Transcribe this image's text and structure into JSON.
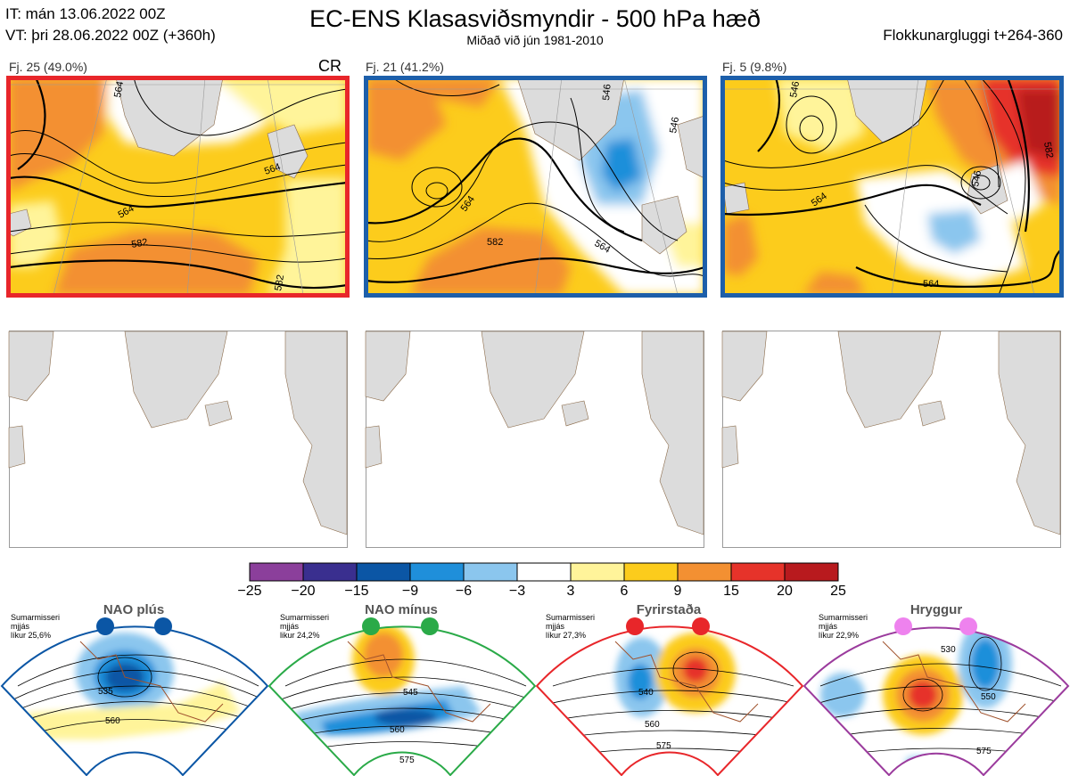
{
  "header": {
    "it_line": "IT: mán 13.06.2022 00Z",
    "vt_line": "VT: þri 28.06.2022 00Z  (+360h)",
    "title": "EC-ENS Klasasviðsmyndir - 500 hPa hæð",
    "subtitle": "Miðað við jún 1981-2010",
    "window": "Flokkunargluggi t+264-360"
  },
  "panels": [
    {
      "label": "Fj. 25 (49.0%)",
      "regime": "CR",
      "frame_color": "#e8262a",
      "contour_labels": [
        "564",
        "564",
        "582",
        "564",
        "582"
      ]
    },
    {
      "label": "Fj. 21 (41.2%)",
      "regime": "",
      "frame_color": "#1d5faa",
      "contour_labels": [
        "546",
        "564",
        "582",
        "564",
        "546"
      ]
    },
    {
      "label": "Fj. 5 (9.8%)",
      "regime": "",
      "frame_color": "#1d5faa",
      "contour_labels": [
        "546",
        "564",
        "546",
        "564",
        "582"
      ]
    }
  ],
  "chart_data": {
    "type": "heatmap",
    "title": "EC-ENS Klasasviðsmyndir - 500 hPa hæð",
    "colorbar": {
      "ticks": [
        "−25",
        "−20",
        "−15",
        "−9",
        "−6",
        "−3",
        "3",
        "6",
        "9",
        "15",
        "20",
        "25"
      ],
      "colors": [
        "#8b3f9b",
        "#3a2f8f",
        "#0b56a5",
        "#1f8fda",
        "#8bc6ee",
        "#ffffff",
        "#fff49a",
        "#fccc1c",
        "#f39032",
        "#e6332a",
        "#b81a1e"
      ]
    }
  },
  "regimes": [
    {
      "name": "NAO plús",
      "line1": "Sumarmisseri",
      "line2": "mjjás",
      "line3": "líkur 25,6%",
      "color": "#0b56a5",
      "contours": [
        "535",
        "560"
      ]
    },
    {
      "name": "NAO mínus",
      "line1": "Sumarmisseri",
      "line2": "mjjás",
      "line3": "likur 24,2%",
      "color": "#2aaa48",
      "contours": [
        "545",
        "560",
        "575"
      ]
    },
    {
      "name": "Fyrirstaða",
      "line1": "Sumarmisseri",
      "line2": "mjjás",
      "line3": "líkur 27,3%",
      "color": "#e8262a",
      "contours": [
        "540",
        "560",
        "575"
      ]
    },
    {
      "name": "Hryggur",
      "line1": "Sumarmisseri",
      "line2": "mjjás",
      "line3": "líkur 22,9%",
      "color": "#9b3b9d",
      "contours": [
        "530",
        "550",
        "575"
      ]
    }
  ]
}
